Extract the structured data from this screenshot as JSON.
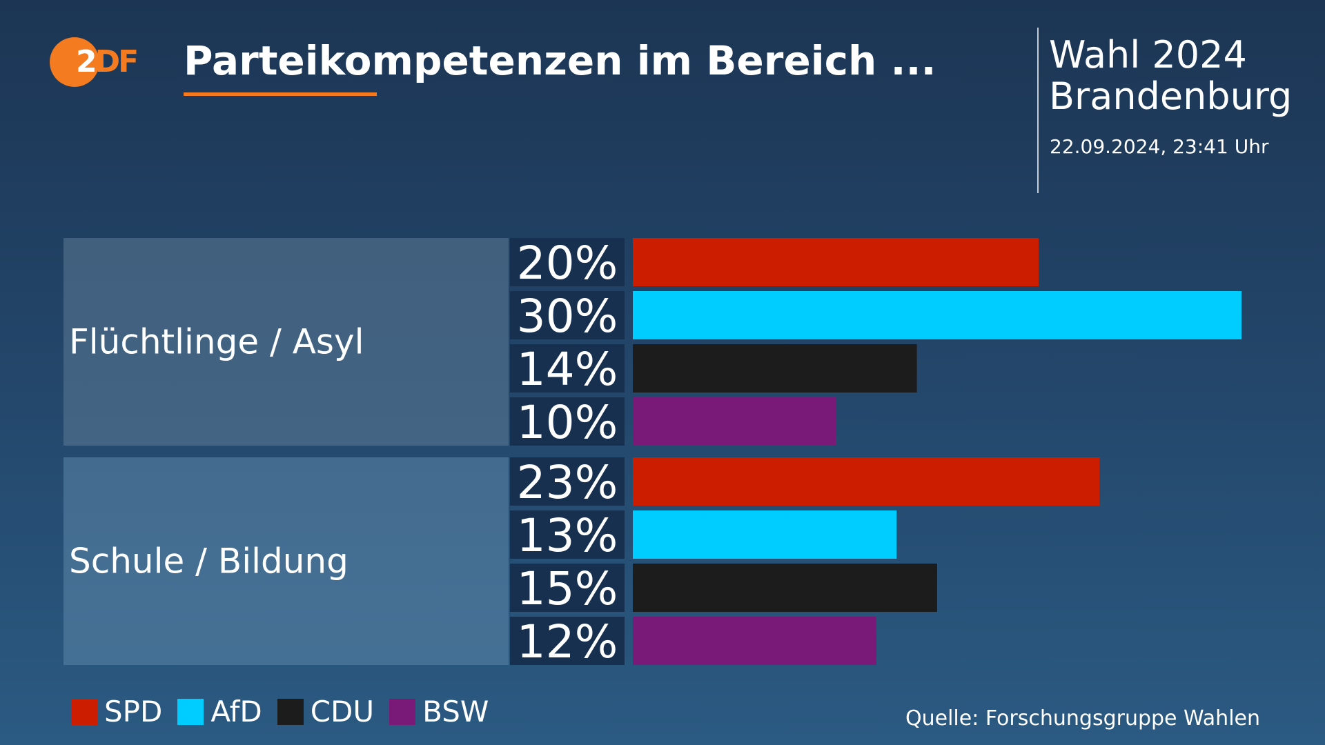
{
  "logo": {
    "text_white": "2",
    "text_orange": "DF"
  },
  "header": {
    "title": "Parteikompetenzen im Bereich ...",
    "election_line1": "Wahl 2024",
    "election_line2": "Brandenburg",
    "timestamp": "22.09.2024, 23:41 Uhr"
  },
  "colors": {
    "accent": "#f47b20",
    "SPD": "#cc1d00",
    "AfD": "#00cdff",
    "CDU": "#1c1c1c",
    "BSW": "#7a1a78"
  },
  "legend": [
    {
      "name": "SPD",
      "color": "#cc1d00"
    },
    {
      "name": "AfD",
      "color": "#00cdff"
    },
    {
      "name": "CDU",
      "color": "#1c1c1c"
    },
    {
      "name": "BSW",
      "color": "#7a1a78"
    }
  ],
  "source": "Quelle: Forschungsgruppe Wahlen",
  "chart_data": {
    "type": "bar",
    "orientation": "horizontal",
    "categories": [
      "Flüchtlinge / Asyl",
      "Schule / Bildung"
    ],
    "series": [
      {
        "name": "SPD",
        "values": [
          20,
          23
        ]
      },
      {
        "name": "AfD",
        "values": [
          30,
          13
        ]
      },
      {
        "name": "CDU",
        "values": [
          14,
          15
        ]
      },
      {
        "name": "BSW",
        "values": [
          10,
          12
        ]
      }
    ],
    "value_labels": [
      [
        "20%",
        "30%",
        "14%",
        "10%"
      ],
      [
        "23%",
        "13%",
        "15%",
        "12%"
      ]
    ],
    "unit": "%",
    "xlim": [
      0,
      30
    ],
    "grid": false,
    "legend_position": "bottom-left"
  }
}
